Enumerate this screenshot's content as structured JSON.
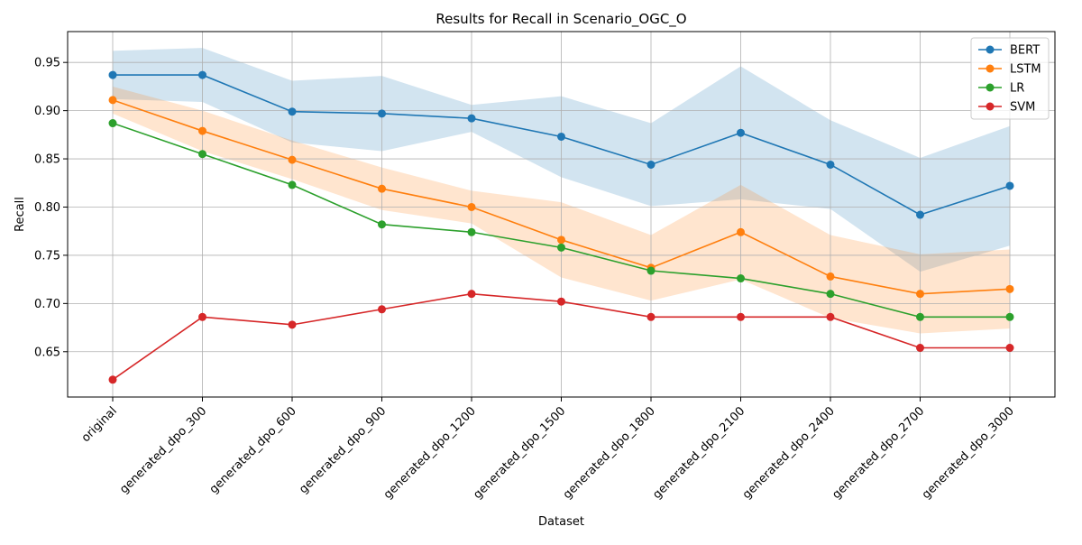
{
  "chart_data": {
    "type": "line",
    "title": "Results for Recall in Scenario_OGC_O",
    "xlabel": "Dataset",
    "ylabel": "Recall",
    "categories": [
      "original",
      "generated_dpo_300",
      "generated_dpo_600",
      "generated_dpo_900",
      "generated_dpo_1200",
      "generated_dpo_1500",
      "generated_dpo_1800",
      "generated_dpo_2100",
      "generated_dpo_2400",
      "generated_dpo_2700",
      "generated_dpo_3000"
    ],
    "ylim": [
      0.603,
      0.982
    ],
    "yticks": [
      "0.65",
      "0.70",
      "0.75",
      "0.80",
      "0.85",
      "0.90",
      "0.95"
    ],
    "grid": true,
    "legend_position": "top-right",
    "series": [
      {
        "name": "BERT",
        "color": "#1f77b4",
        "values": [
          0.937,
          0.937,
          0.899,
          0.897,
          0.892,
          0.873,
          0.844,
          0.877,
          0.844,
          0.792,
          0.822
        ],
        "band_upper": [
          0.962,
          0.965,
          0.931,
          0.936,
          0.906,
          0.915,
          0.887,
          0.946,
          0.89,
          0.851,
          0.884
        ],
        "band_lower": [
          0.912,
          0.909,
          0.867,
          0.858,
          0.878,
          0.831,
          0.801,
          0.808,
          0.798,
          0.733,
          0.76
        ]
      },
      {
        "name": "LSTM",
        "color": "#ff7f0e",
        "values": [
          0.911,
          0.879,
          0.849,
          0.819,
          0.8,
          0.766,
          0.737,
          0.774,
          0.728,
          0.71,
          0.715
        ],
        "band_upper": [
          0.925,
          0.9,
          0.869,
          0.841,
          0.817,
          0.805,
          0.771,
          0.823,
          0.771,
          0.751,
          0.756
        ],
        "band_lower": [
          0.897,
          0.858,
          0.829,
          0.797,
          0.783,
          0.727,
          0.703,
          0.725,
          0.685,
          0.669,
          0.674
        ]
      },
      {
        "name": "LR",
        "color": "#2ca02c",
        "values": [
          0.887,
          0.855,
          0.823,
          0.782,
          0.774,
          0.758,
          0.734,
          0.726,
          0.71,
          0.686,
          0.686
        ]
      },
      {
        "name": "SVM",
        "color": "#d62728",
        "values": [
          0.621,
          0.686,
          0.678,
          0.694,
          0.71,
          0.702,
          0.686,
          0.686,
          0.686,
          0.654,
          0.654
        ]
      }
    ]
  }
}
